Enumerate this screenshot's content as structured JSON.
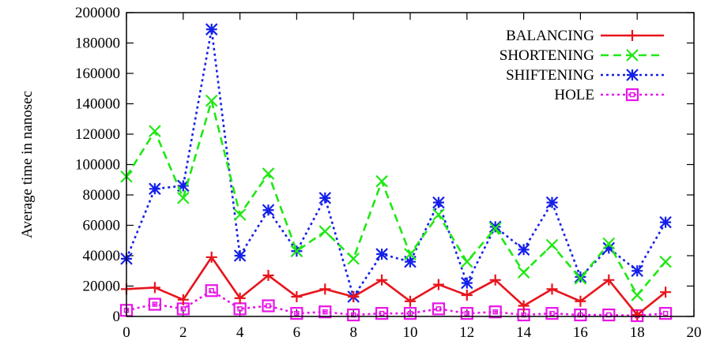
{
  "chart_data": {
    "type": "line",
    "title": "",
    "xlabel": "",
    "ylabel": "Average time in nanosec",
    "xlim": [
      0,
      20
    ],
    "ylim": [
      0,
      200000
    ],
    "x_ticks": [
      0,
      2,
      4,
      6,
      8,
      10,
      12,
      14,
      16,
      18,
      20
    ],
    "y_ticks": [
      0,
      20000,
      40000,
      60000,
      80000,
      100000,
      120000,
      140000,
      160000,
      180000,
      200000
    ],
    "grid": false,
    "legend_position": "top-right",
    "x": [
      0,
      1,
      2,
      3,
      4,
      5,
      6,
      7,
      8,
      9,
      10,
      11,
      12,
      13,
      14,
      15,
      16,
      17,
      18,
      19
    ],
    "series": [
      {
        "name": "BALANCING",
        "color": "#e8141c",
        "dash": "solid",
        "marker": "plus",
        "values": [
          18000,
          19000,
          11000,
          39000,
          12000,
          27000,
          13000,
          18000,
          13000,
          24000,
          10000,
          21000,
          14000,
          24000,
          7000,
          18000,
          10000,
          24000,
          1000,
          16000
        ]
      },
      {
        "name": "SHORTENING",
        "color": "#1fe814",
        "dash": "dashed",
        "marker": "cross",
        "values": [
          92000,
          122000,
          78000,
          142000,
          67000,
          94000,
          43000,
          56000,
          38000,
          89000,
          41000,
          67000,
          36000,
          58000,
          29000,
          47000,
          25000,
          48000,
          14000,
          36000
        ]
      },
      {
        "name": "SHIFTENING",
        "color": "#1420e8",
        "dash": "dotted",
        "marker": "star",
        "values": [
          38000,
          84000,
          86000,
          189000,
          40000,
          70000,
          43000,
          78000,
          13000,
          41000,
          36000,
          75000,
          22000,
          59000,
          44000,
          75000,
          26000,
          45000,
          30000,
          62000
        ]
      },
      {
        "name": "HOLE",
        "color": "#e814e8",
        "dash": "dotted",
        "marker": "square",
        "values": [
          4000,
          8000,
          5000,
          17000,
          5000,
          7000,
          2000,
          3000,
          1000,
          2000,
          2000,
          5000,
          2000,
          3000,
          1000,
          2000,
          1000,
          1000,
          500,
          2000
        ]
      }
    ]
  }
}
